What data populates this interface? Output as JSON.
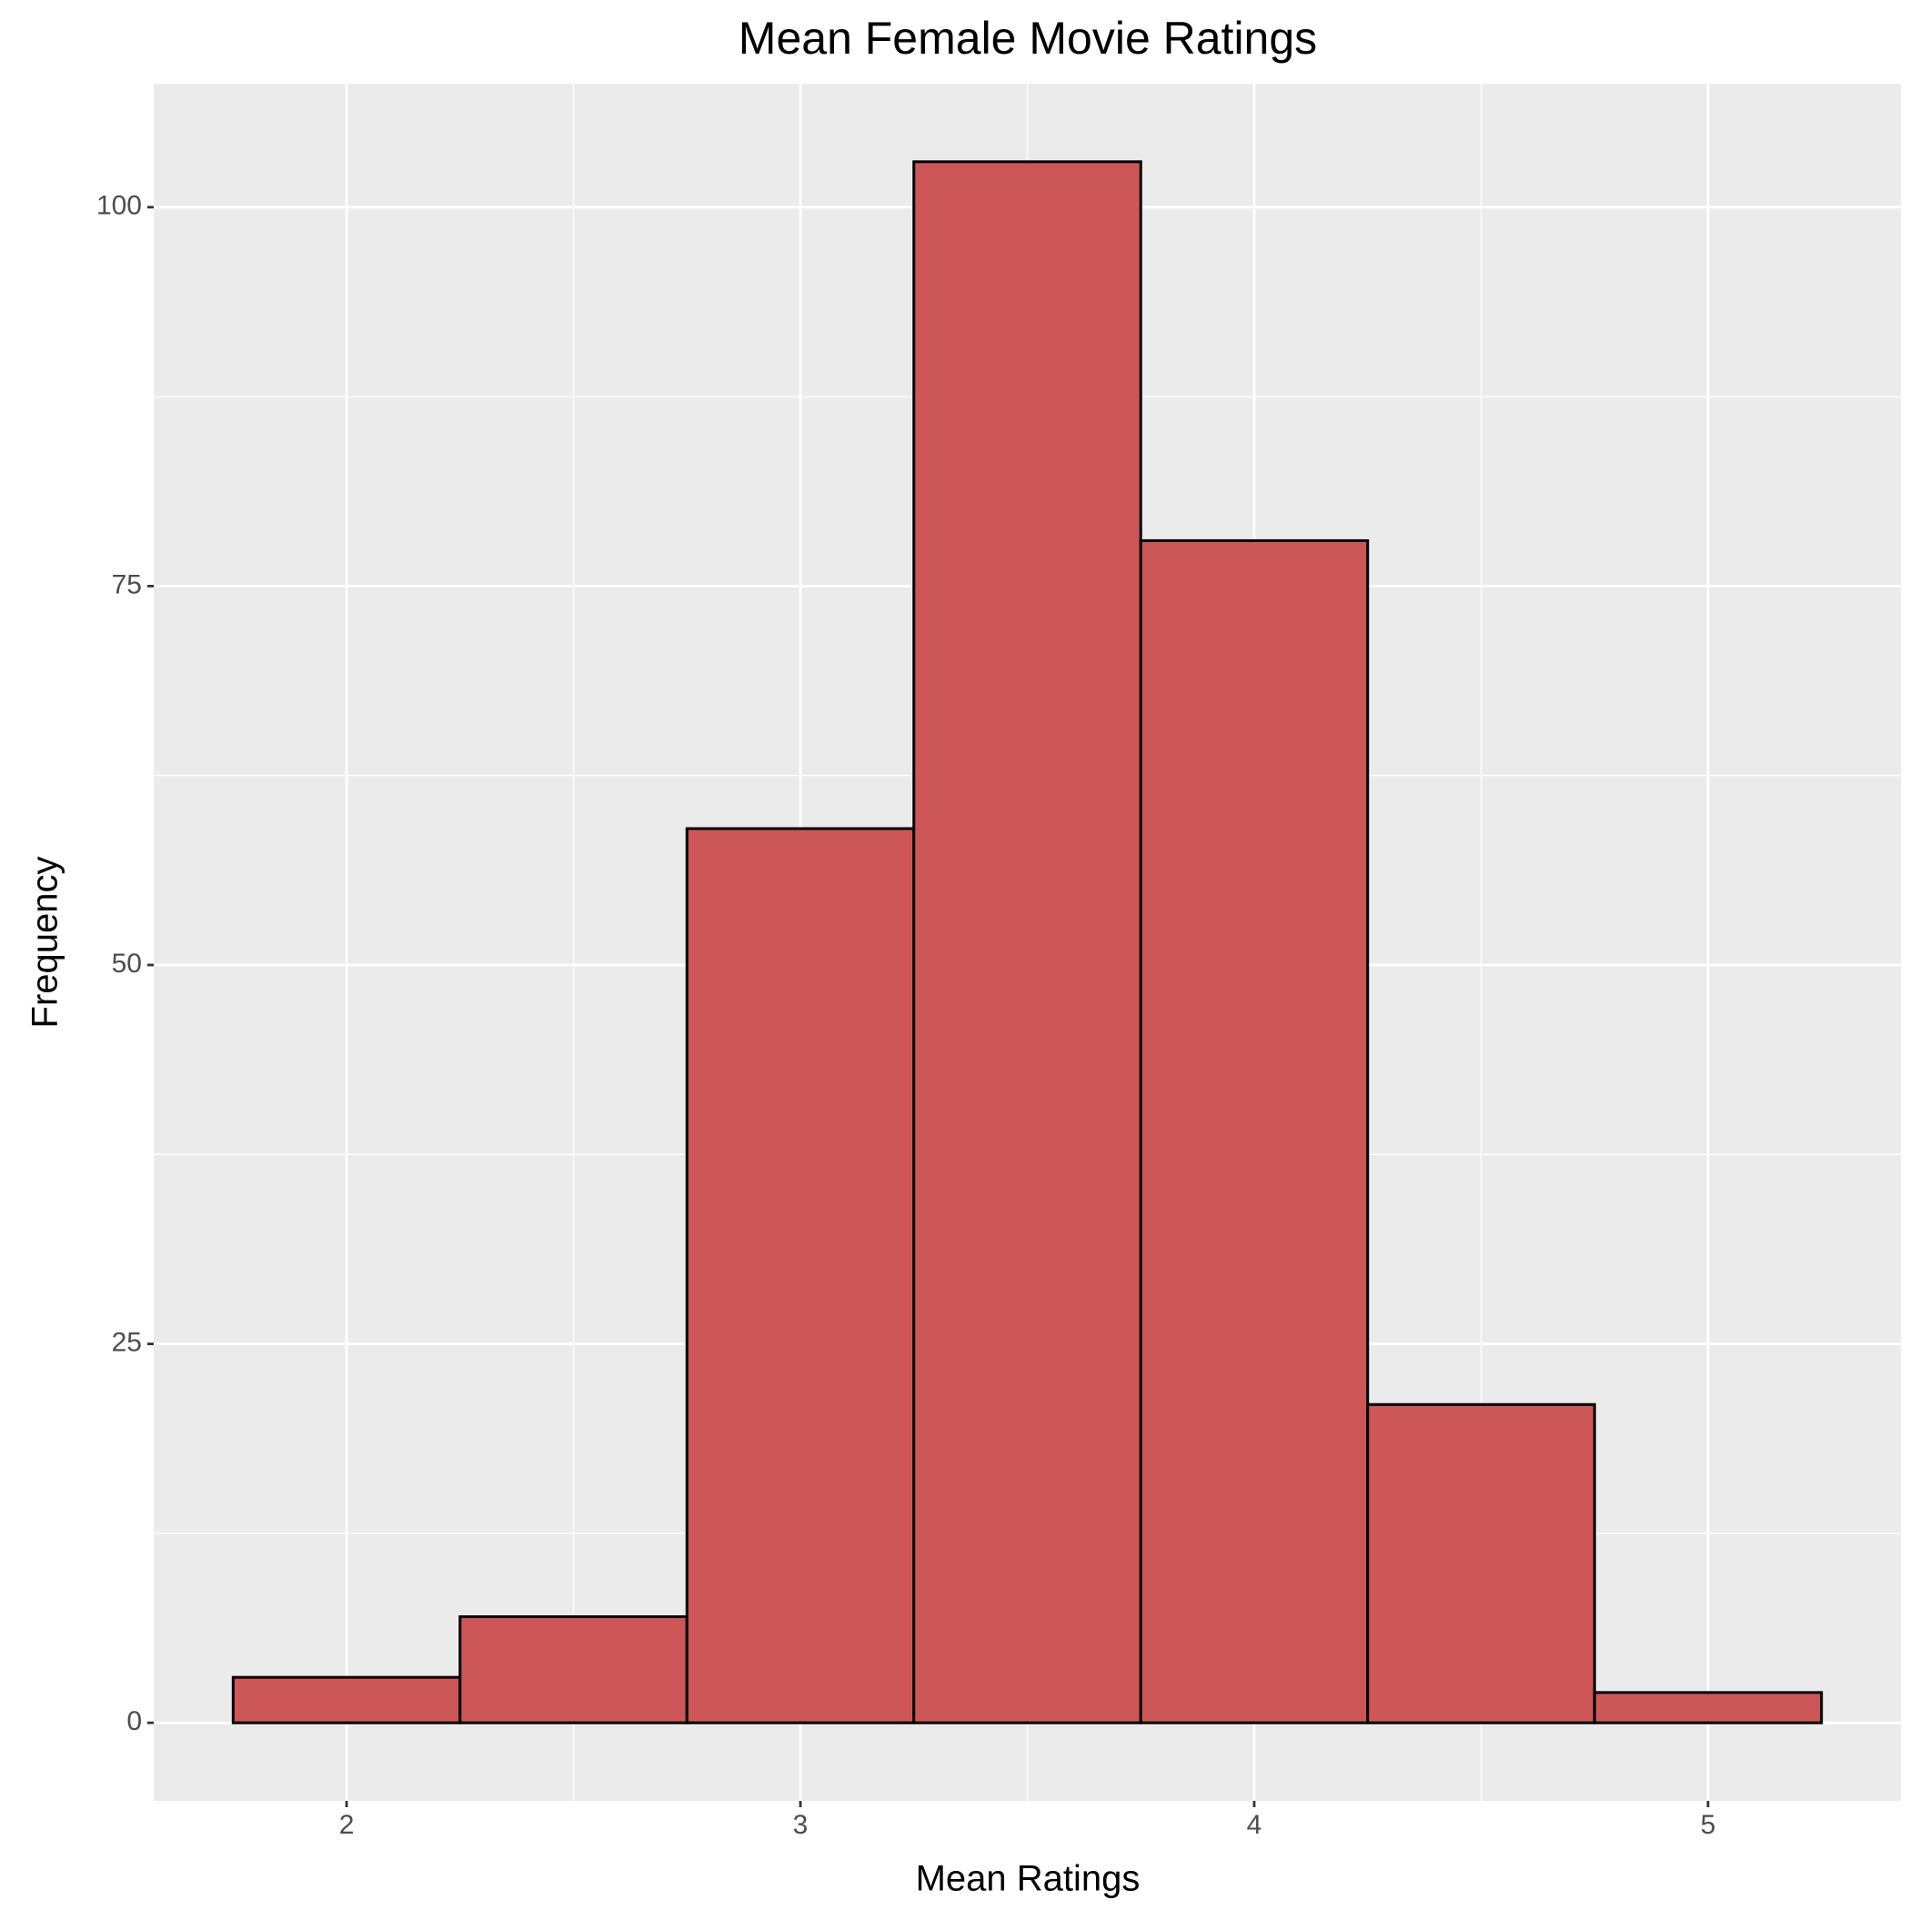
{
  "chart_data": {
    "type": "histogram",
    "title": "Mean Female Movie Ratings",
    "x_label": "Mean Ratings",
    "y_label": "Frequency",
    "bins": [
      1.75,
      2.25,
      2.75,
      3.25,
      3.75,
      4.25,
      4.75,
      5.25
    ],
    "values": [
      3,
      7,
      59,
      103,
      78,
      21,
      2
    ],
    "color": "#cd5657",
    "edge_color": "#000000",
    "xlim": [
      1.575,
      5.425
    ],
    "ylim": [
      -5.15,
      108.15
    ],
    "xticks": [
      2,
      3,
      4,
      5
    ],
    "yticks": [
      0,
      25,
      50,
      75,
      100
    ],
    "grid": true
  }
}
